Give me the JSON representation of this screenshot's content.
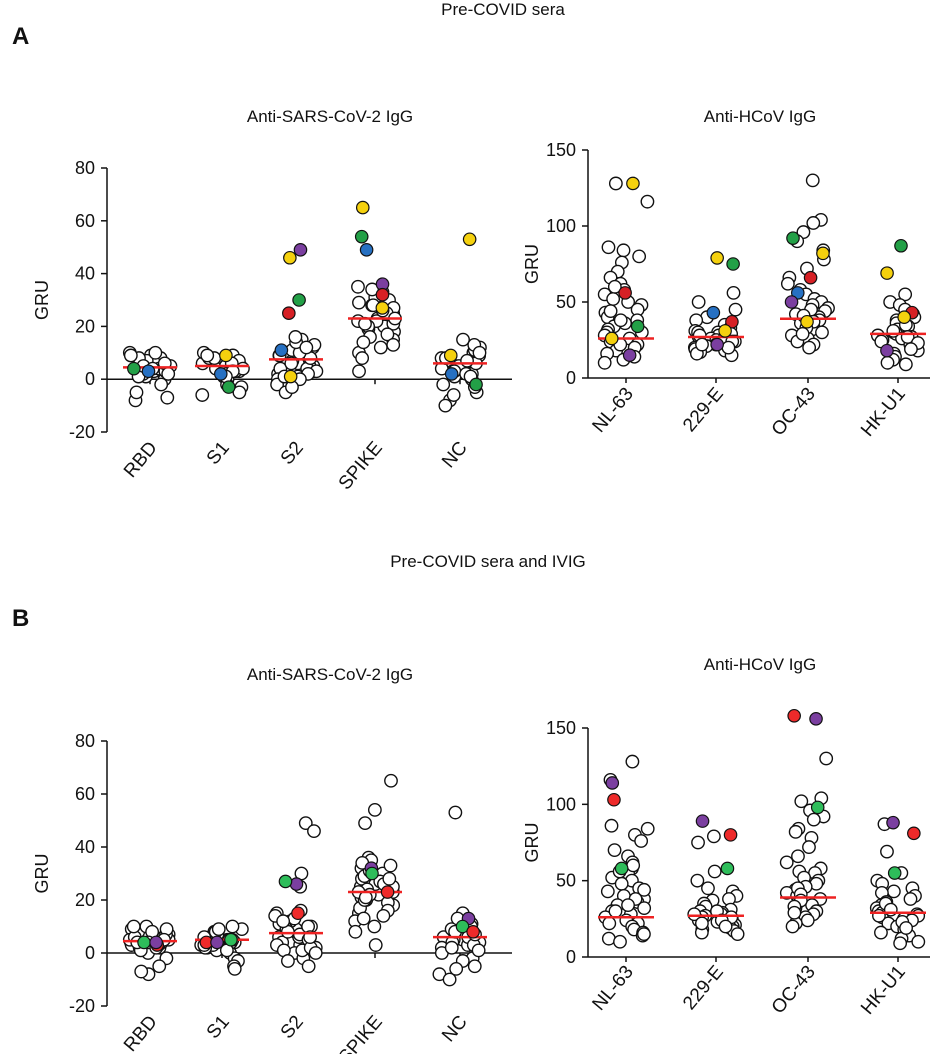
{
  "figure": {
    "panels": [
      {
        "letter": "A",
        "section_title": "Pre-COVID sera"
      },
      {
        "letter": "B",
        "section_title": "Pre-COVID sera and IVIG"
      }
    ]
  },
  "colors": {
    "median_line": "#ee2222",
    "open_circle_stroke": "#111111",
    "yellow": "#f5d10e",
    "green": "#23a047",
    "purple": "#7b3fa0",
    "red": "#d62025",
    "blue": "#2670c2",
    "ivig_red": "#ee2a2a",
    "ivig_purple": "#7b3fa0",
    "ivig_green": "#2ebd5a"
  },
  "chart_data": [
    {
      "id": "A-sars",
      "type": "scatter",
      "title": "Anti-SARS-CoV-2 IgG",
      "ylabel": "GRU",
      "xlabel": "",
      "ylim": [
        -20,
        80
      ],
      "yticks": [
        -20,
        0,
        20,
        40,
        60,
        80
      ],
      "categories": [
        "RBD",
        "S1",
        "S2",
        "SPIKE",
        "NC"
      ],
      "medians": [
        4.5,
        5,
        7.5,
        23,
        6
      ],
      "points": [
        [
          4,
          5,
          6,
          3,
          7,
          2,
          8,
          4,
          5,
          9,
          10,
          3,
          6,
          1,
          0,
          2,
          7,
          8,
          5,
          4,
          3,
          6,
          9,
          10,
          2,
          1,
          -2,
          -8,
          -7,
          -5,
          5,
          4
        ],
        [
          5,
          6,
          4,
          7,
          8,
          3,
          2,
          9,
          10,
          6,
          5,
          4,
          1,
          0,
          -2,
          -3,
          -5,
          -6,
          3,
          7,
          8,
          9,
          4,
          5,
          6,
          2,
          3,
          1
        ],
        [
          7,
          8,
          5,
          6,
          9,
          10,
          12,
          15,
          3,
          2,
          4,
          0,
          -2,
          -5,
          1,
          6,
          7,
          11,
          13,
          9,
          5,
          4,
          3,
          2,
          8,
          10,
          6,
          14,
          16,
          12,
          1,
          0,
          -3
        ],
        [
          23,
          25,
          20,
          22,
          28,
          30,
          33,
          35,
          18,
          15,
          12,
          10,
          8,
          3,
          26,
          24,
          21,
          19,
          17,
          27,
          29,
          31,
          34,
          22,
          20,
          16,
          14,
          13,
          25,
          23,
          21,
          26,
          28
        ],
        [
          6,
          5,
          7,
          4,
          8,
          10,
          12,
          15,
          3,
          2,
          1,
          0,
          -2,
          -5,
          -8,
          -10,
          9,
          11,
          6,
          5,
          4,
          3,
          7,
          8,
          2,
          1,
          -3,
          -6,
          13,
          10
        ]
      ],
      "highlights": [
        [
          {
            "value": 3,
            "color": "blue"
          },
          {
            "value": 4,
            "color": "green"
          }
        ],
        [
          {
            "value": 9,
            "color": "yellow"
          },
          {
            "value": -3,
            "color": "green"
          },
          {
            "value": 2,
            "color": "blue"
          }
        ],
        [
          {
            "value": 49,
            "color": "purple"
          },
          {
            "value": 46,
            "color": "yellow"
          },
          {
            "value": 30,
            "color": "green"
          },
          {
            "value": 25,
            "color": "red"
          },
          {
            "value": 11,
            "color": "blue"
          },
          {
            "value": 1,
            "color": "yellow"
          }
        ],
        [
          {
            "value": 65,
            "color": "yellow"
          },
          {
            "value": 54,
            "color": "green"
          },
          {
            "value": 49,
            "color": "blue"
          },
          {
            "value": 36,
            "color": "purple"
          },
          {
            "value": 32,
            "color": "red"
          },
          {
            "value": 27,
            "color": "yellow"
          }
        ],
        [
          {
            "value": 53,
            "color": "yellow"
          },
          {
            "value": 9,
            "color": "yellow"
          },
          {
            "value": 2,
            "color": "blue"
          },
          {
            "value": -2,
            "color": "green"
          }
        ]
      ]
    },
    {
      "id": "A-hcov",
      "type": "scatter",
      "title": "Anti-HCoV IgG",
      "ylabel": "GRU",
      "xlabel": "",
      "ylim": [
        0,
        150
      ],
      "yticks": [
        0,
        50,
        100,
        150
      ],
      "categories": [
        "NL-63",
        "229-E",
        "OC-43",
        "HK-U1"
      ],
      "medians": [
        26,
        27,
        39,
        29
      ],
      "points": [
        [
          128,
          116,
          86,
          84,
          80,
          76,
          70,
          66,
          62,
          58,
          55,
          52,
          50,
          48,
          45,
          43,
          40,
          38,
          36,
          34,
          32,
          30,
          28,
          26,
          24,
          22,
          20,
          18,
          16,
          14,
          12,
          10,
          44,
          38,
          30,
          22,
          60
        ],
        [
          56,
          50,
          45,
          40,
          38,
          35,
          33,
          31,
          30,
          29,
          28,
          27,
          26,
          25,
          24,
          23,
          22,
          21,
          20,
          19,
          18,
          17,
          16,
          15,
          30,
          28,
          26,
          24,
          22,
          20
        ],
        [
          130,
          104,
          102,
          96,
          90,
          84,
          78,
          72,
          66,
          62,
          58,
          55,
          52,
          50,
          48,
          46,
          44,
          42,
          40,
          38,
          36,
          34,
          32,
          30,
          28,
          26,
          24,
          22,
          20,
          45,
          41,
          37,
          33,
          29
        ],
        [
          55,
          50,
          48,
          45,
          42,
          40,
          38,
          36,
          34,
          32,
          30,
          29,
          28,
          27,
          26,
          25,
          24,
          22,
          20,
          18,
          16,
          14,
          12,
          10,
          9,
          35,
          31,
          27,
          23,
          19
        ]
      ],
      "highlights": [
        [
          {
            "value": 128,
            "color": "yellow"
          },
          {
            "value": 56,
            "color": "red"
          },
          {
            "value": 34,
            "color": "green"
          },
          {
            "value": 15,
            "color": "purple"
          },
          {
            "value": 26,
            "color": "yellow"
          }
        ],
        [
          {
            "value": 79,
            "color": "yellow"
          },
          {
            "value": 75,
            "color": "green"
          },
          {
            "value": 43,
            "color": "blue"
          },
          {
            "value": 37,
            "color": "red"
          },
          {
            "value": 31,
            "color": "yellow"
          },
          {
            "value": 22,
            "color": "purple"
          }
        ],
        [
          {
            "value": 92,
            "color": "green"
          },
          {
            "value": 82,
            "color": "yellow"
          },
          {
            "value": 66,
            "color": "red"
          },
          {
            "value": 56,
            "color": "blue"
          },
          {
            "value": 50,
            "color": "purple"
          },
          {
            "value": 37,
            "color": "yellow"
          }
        ],
        [
          {
            "value": 87,
            "color": "green"
          },
          {
            "value": 69,
            "color": "yellow"
          },
          {
            "value": 43,
            "color": "red"
          },
          {
            "value": 40,
            "color": "yellow"
          },
          {
            "value": 18,
            "color": "purple"
          }
        ]
      ]
    },
    {
      "id": "B-sars",
      "type": "scatter",
      "title": "Anti-SARS-CoV-2 IgG",
      "ylabel": "GRU",
      "xlabel": "",
      "ylim": [
        -20,
        80
      ],
      "yticks": [
        -20,
        0,
        20,
        40,
        60,
        80
      ],
      "categories": [
        "RBD",
        "S1",
        "S2",
        "SPIKE",
        "NC"
      ],
      "medians": [
        4.5,
        5,
        7.5,
        23,
        6
      ],
      "points": [
        [
          4,
          5,
          6,
          3,
          7,
          2,
          8,
          4,
          5,
          9,
          10,
          3,
          6,
          1,
          0,
          2,
          7,
          8,
          5,
          4,
          3,
          6,
          9,
          10,
          2,
          1,
          -2,
          -8,
          -7,
          -5,
          5,
          4
        ],
        [
          5,
          6,
          4,
          7,
          8,
          3,
          2,
          9,
          10,
          6,
          5,
          4,
          1,
          0,
          -2,
          -3,
          -5,
          -6,
          3,
          7,
          8,
          9,
          4,
          5,
          6,
          2,
          3,
          1
        ],
        [
          49,
          46,
          30,
          25,
          7,
          8,
          5,
          6,
          9,
          10,
          12,
          15,
          3,
          2,
          4,
          0,
          -2,
          -5,
          1,
          6,
          7,
          11,
          13,
          9,
          5,
          4,
          3,
          2,
          8,
          10,
          6,
          14,
          16,
          12,
          1,
          0,
          -3
        ],
        [
          65,
          54,
          49,
          36,
          32,
          23,
          25,
          20,
          22,
          28,
          30,
          33,
          35,
          18,
          15,
          12,
          10,
          8,
          3,
          26,
          24,
          21,
          19,
          17,
          27,
          29,
          31,
          34,
          22,
          20,
          16,
          14,
          13,
          25,
          23,
          21,
          26,
          28
        ],
        [
          53,
          6,
          5,
          7,
          4,
          8,
          10,
          12,
          15,
          3,
          2,
          1,
          0,
          -2,
          -5,
          -8,
          -10,
          9,
          11,
          6,
          5,
          4,
          3,
          7,
          8,
          2,
          1,
          -3,
          -6,
          13,
          10
        ]
      ],
      "highlights": [
        [
          {
            "value": 3,
            "color": "ivig_red"
          },
          {
            "value": 4,
            "color": "ivig_green"
          },
          {
            "value": 4,
            "color": "ivig_purple"
          }
        ],
        [
          {
            "value": 4,
            "color": "ivig_red"
          },
          {
            "value": 4,
            "color": "ivig_purple"
          },
          {
            "value": 5,
            "color": "ivig_green"
          }
        ],
        [
          {
            "value": 26,
            "color": "ivig_purple"
          },
          {
            "value": 27,
            "color": "ivig_green"
          },
          {
            "value": 15,
            "color": "ivig_red"
          }
        ],
        [
          {
            "value": 32,
            "color": "ivig_purple"
          },
          {
            "value": 30,
            "color": "ivig_green"
          },
          {
            "value": 23,
            "color": "ivig_red"
          }
        ],
        [
          {
            "value": 13,
            "color": "ivig_purple"
          },
          {
            "value": 10,
            "color": "ivig_green"
          },
          {
            "value": 8,
            "color": "ivig_red"
          }
        ]
      ]
    },
    {
      "id": "B-hcov",
      "type": "scatter",
      "title": "Anti-HCoV IgG",
      "ylabel": "GRU",
      "xlabel": "",
      "ylim": [
        0,
        150
      ],
      "yticks": [
        0,
        50,
        100,
        150
      ],
      "categories": [
        "NL-63",
        "229-E",
        "OC-43",
        "HK-U1"
      ],
      "medians": [
        26,
        27,
        39,
        29
      ],
      "points": [
        [
          128,
          116,
          86,
          84,
          80,
          76,
          70,
          66,
          62,
          58,
          55,
          52,
          50,
          48,
          45,
          43,
          40,
          38,
          36,
          34,
          32,
          30,
          28,
          26,
          24,
          22,
          20,
          18,
          16,
          14,
          12,
          10,
          44,
          38,
          30,
          22,
          60,
          56,
          34,
          15
        ],
        [
          79,
          75,
          56,
          50,
          45,
          43,
          40,
          38,
          37,
          35,
          33,
          31,
          30,
          29,
          28,
          27,
          26,
          25,
          24,
          23,
          22,
          21,
          20,
          19,
          18,
          17,
          16,
          15,
          30,
          28,
          26,
          24,
          22,
          20
        ],
        [
          130,
          104,
          102,
          96,
          92,
          90,
          84,
          82,
          78,
          72,
          66,
          62,
          58,
          56,
          55,
          52,
          50,
          48,
          46,
          44,
          42,
          40,
          38,
          36,
          34,
          32,
          30,
          28,
          26,
          24,
          22,
          20,
          45,
          41,
          37,
          33,
          29
        ],
        [
          87,
          69,
          55,
          50,
          48,
          45,
          43,
          42,
          40,
          38,
          36,
          34,
          32,
          30,
          29,
          28,
          27,
          26,
          25,
          24,
          22,
          20,
          18,
          16,
          14,
          12,
          10,
          9,
          35,
          31,
          27,
          23,
          19
        ]
      ],
      "highlights": [
        [
          {
            "value": 114,
            "color": "ivig_purple"
          },
          {
            "value": 103,
            "color": "ivig_red"
          },
          {
            "value": 58,
            "color": "ivig_green"
          }
        ],
        [
          {
            "value": 89,
            "color": "ivig_purple"
          },
          {
            "value": 80,
            "color": "ivig_red"
          },
          {
            "value": 58,
            "color": "ivig_green"
          }
        ],
        [
          {
            "value": 158,
            "color": "ivig_red"
          },
          {
            "value": 156,
            "color": "ivig_purple"
          },
          {
            "value": 98,
            "color": "ivig_green"
          }
        ],
        [
          {
            "value": 88,
            "color": "ivig_purple"
          },
          {
            "value": 81,
            "color": "ivig_red"
          },
          {
            "value": 55,
            "color": "ivig_green"
          }
        ]
      ]
    }
  ]
}
